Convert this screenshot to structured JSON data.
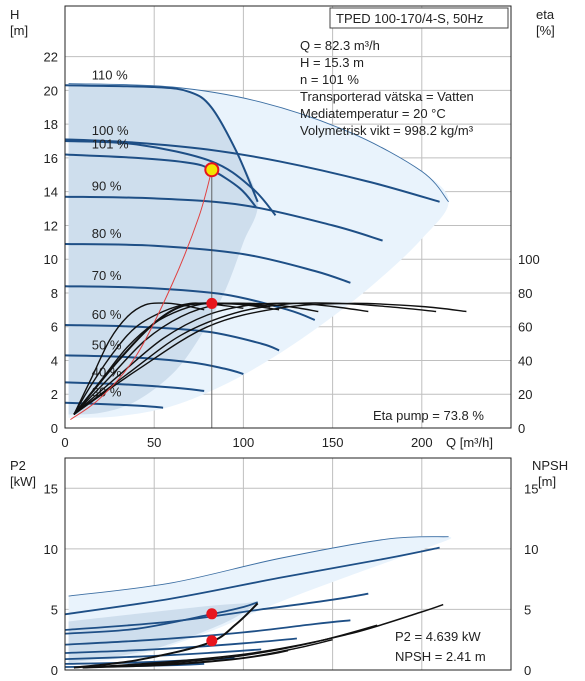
{
  "colors": {
    "curve": "#1e4f86",
    "envelope_fill": "#e9f3fc",
    "envelope_line": "#3d6fa3",
    "shade_fill": "#c9d9ea",
    "eta_curve": "#111111",
    "duty_marker": "#e8141c",
    "duty_marker_ring": "#f2e400",
    "system_curve": "#e04040",
    "grid": "#bfbfbf",
    "axis": "#222222"
  },
  "chart_data": [
    {
      "type": "line",
      "title": "TPED 100-170/4-S, 50Hz",
      "x_label": "Q [m³/h]",
      "y_label_left": [
        "H",
        "[m]"
      ],
      "y_label_right": [
        "eta",
        "[%]"
      ],
      "xlim": [
        0,
        250
      ],
      "ylim": [
        0,
        25
      ],
      "x_ticks": [
        0,
        50,
        100,
        150,
        200
      ],
      "y_ticks_left": [
        0,
        2,
        4,
        6,
        8,
        10,
        12,
        14,
        16,
        18,
        20,
        22
      ],
      "y2lim": [
        0,
        250
      ],
      "y_ticks_right": [
        0,
        20,
        40,
        60,
        80,
        100
      ],
      "info_lines": [
        "Q = 82.3 m³/h",
        "H = 15.3 m",
        "n = 101 %",
        "Transporterad vätska = Vatten",
        "Mediatemperatur = 20 °C",
        "Volymetrisk vikt = 998.2 kg/m³"
      ],
      "eta_readout": "Eta pump = 73.8 %",
      "duty_point": {
        "q": 82.3,
        "h": 15.3,
        "eta": 73.8
      },
      "speed_curves": [
        {
          "label": "110 %",
          "points": [
            [
              0,
              20.3
            ],
            [
              50,
              20.2
            ],
            [
              70,
              19.9
            ],
            [
              82,
              19.0
            ],
            [
              96,
              16.4
            ],
            [
              108,
              13.4
            ]
          ]
        },
        {
          "label": "",
          "points": [
            [
              0,
              17.1
            ],
            [
              40,
              16.9
            ],
            [
              80,
              16.5
            ],
            [
              120,
              15.8
            ],
            [
              170,
              14.6
            ],
            [
              210,
              13.4
            ]
          ]
        },
        {
          "label": "100 %",
          "points": [
            [
              0,
              17.0
            ],
            [
              40,
              16.8
            ],
            [
              82,
              15.8
            ],
            [
              105,
              14.2
            ],
            [
              118,
              12.6
            ]
          ]
        },
        {
          "label": "101 %",
          "points": [
            [
              0,
              16.2
            ],
            [
              40,
              16.0
            ],
            [
              70,
              15.7
            ],
            [
              82,
              15.3
            ],
            [
              98,
              14.2
            ],
            [
              107,
              13.1
            ]
          ]
        },
        {
          "label": "90 %",
          "points": [
            [
              0,
              13.7
            ],
            [
              50,
              13.6
            ],
            [
              100,
              13.2
            ],
            [
              150,
              12.0
            ],
            [
              178,
              11.1
            ]
          ]
        },
        {
          "label": "80 %",
          "points": [
            [
              0,
              10.9
            ],
            [
              50,
              10.8
            ],
            [
              100,
              10.3
            ],
            [
              140,
              9.3
            ],
            [
              160,
              8.6
            ]
          ]
        },
        {
          "label": "70 %",
          "points": [
            [
              0,
              8.4
            ],
            [
              45,
              8.3
            ],
            [
              90,
              7.9
            ],
            [
              125,
              7.0
            ],
            [
              140,
              6.4
            ]
          ]
        },
        {
          "label": "60 %",
          "points": [
            [
              0,
              6.1
            ],
            [
              40,
              6.0
            ],
            [
              80,
              5.7
            ],
            [
              110,
              5.0
            ],
            [
              120,
              4.6
            ]
          ]
        },
        {
          "label": "50 %",
          "points": [
            [
              0,
              4.3
            ],
            [
              35,
              4.2
            ],
            [
              70,
              3.9
            ],
            [
              90,
              3.5
            ],
            [
              100,
              3.2
            ]
          ]
        },
        {
          "label": "40 %",
          "points": [
            [
              0,
              2.7
            ],
            [
              30,
              2.6
            ],
            [
              60,
              2.4
            ],
            [
              78,
              2.2
            ]
          ]
        },
        {
          "label": "30 %",
          "points": [
            [
              0,
              1.5
            ],
            [
              25,
              1.4
            ],
            [
              45,
              1.3
            ],
            [
              55,
              1.2
            ]
          ]
        }
      ],
      "eta_curves": [
        {
          "points": [
            [
              5,
              8
            ],
            [
              15,
              30
            ],
            [
              25,
              52
            ],
            [
              35,
              66
            ],
            [
              45,
              73
            ],
            [
              55,
              74
            ],
            [
              65,
              73
            ],
            [
              78,
              70
            ]
          ]
        },
        {
          "points": [
            [
              5,
              8
            ],
            [
              15,
              26
            ],
            [
              28,
              46
            ],
            [
              40,
              60
            ],
            [
              55,
              69
            ],
            [
              70,
              73.8
            ],
            [
              85,
              73
            ],
            [
              100,
              71
            ]
          ]
        },
        {
          "points": [
            [
              5,
              8
            ],
            [
              20,
              28
            ],
            [
              35,
              48
            ],
            [
              50,
              62
            ],
            [
              65,
              70
            ],
            [
              80,
              73.8
            ],
            [
              100,
              73
            ],
            [
              120,
              70
            ]
          ]
        },
        {
          "points": [
            [
              5,
              8
            ],
            [
              25,
              30
            ],
            [
              45,
              52
            ],
            [
              65,
              66
            ],
            [
              85,
              73
            ],
            [
              105,
              73.8
            ],
            [
              125,
              72
            ],
            [
              142,
              69
            ]
          ]
        },
        {
          "points": [
            [
              5,
              8
            ],
            [
              30,
              31
            ],
            [
              55,
              53
            ],
            [
              80,
              67
            ],
            [
              105,
              73
            ],
            [
              130,
              73.8
            ],
            [
              150,
              72
            ],
            [
              170,
              69
            ]
          ]
        },
        {
          "points": [
            [
              5,
              8
            ],
            [
              35,
              32
            ],
            [
              65,
              55
            ],
            [
              95,
              68
            ],
            [
              125,
              73.5
            ],
            [
              155,
              73.8
            ],
            [
              185,
              71.5
            ],
            [
              208,
              69
            ]
          ]
        },
        {
          "points": [
            [
              5,
              8
            ],
            [
              30,
              40
            ],
            [
              50,
              62
            ],
            [
              65,
              72
            ],
            [
              80,
              74
            ],
            [
              82.3,
              73.8
            ],
            [
              100,
              73.5
            ],
            [
              115,
              72
            ]
          ]
        },
        {
          "points": [
            [
              5,
              8
            ],
            [
              40,
              34
            ],
            [
              80,
              60
            ],
            [
              120,
              71
            ],
            [
              160,
              73.8
            ],
            [
              200,
              72
            ],
            [
              225,
              69
            ]
          ]
        }
      ],
      "system_curve": [
        [
          3,
          0.5
        ],
        [
          20,
          1.8
        ],
        [
          40,
          4.3
        ],
        [
          60,
          8.5
        ],
        [
          75,
          12.5
        ],
        [
          82.3,
          15.3
        ]
      ]
    },
    {
      "type": "line",
      "x_label": "",
      "y_label_left": [
        "P2",
        "[kW]"
      ],
      "y_label_right": [
        "NPSH",
        "[m]"
      ],
      "xlim": [
        0,
        250
      ],
      "ylim": [
        0,
        17.5
      ],
      "y_ticks_left": [
        0,
        5,
        10,
        15
      ],
      "y_ticks_right": [
        0,
        5,
        10,
        15
      ],
      "p2_readout": "P2 = 4.639 kW",
      "npsh_readout": "NPSH = 2.41 m",
      "duty_p2": 4.639,
      "duty_npsh": 2.41,
      "p2_curves": [
        {
          "points": [
            [
              0,
              3.0
            ],
            [
              40,
              3.4
            ],
            [
              82,
              4.6
            ],
            [
              100,
              5.2
            ],
            [
              108,
              5.6
            ]
          ]
        },
        {
          "points": [
            [
              0,
              4.6
            ],
            [
              60,
              5.9
            ],
            [
              120,
              7.6
            ],
            [
              180,
              9.2
            ],
            [
              210,
              10.1
            ]
          ]
        },
        {
          "points": [
            [
              0,
              3.3
            ],
            [
              60,
              4.0
            ],
            [
              110,
              5.0
            ],
            [
              150,
              5.8
            ],
            [
              170,
              6.3
            ]
          ]
        },
        {
          "points": [
            [
              0,
              2.1
            ],
            [
              50,
              2.5
            ],
            [
              100,
              3.1
            ],
            [
              140,
              3.8
            ],
            [
              160,
              4.1
            ]
          ]
        },
        {
          "points": [
            [
              0,
              1.4
            ],
            [
              50,
              1.7
            ],
            [
              100,
              2.2
            ],
            [
              130,
              2.6
            ]
          ]
        },
        {
          "points": [
            [
              0,
              0.9
            ],
            [
              40,
              1.1
            ],
            [
              80,
              1.4
            ],
            [
              110,
              1.7
            ]
          ]
        },
        {
          "points": [
            [
              0,
              0.5
            ],
            [
              35,
              0.6
            ],
            [
              70,
              0.8
            ],
            [
              95,
              1.0
            ]
          ]
        },
        {
          "points": [
            [
              0,
              0.25
            ],
            [
              30,
              0.3
            ],
            [
              60,
              0.4
            ],
            [
              78,
              0.5
            ]
          ]
        }
      ],
      "npsh_curves": [
        {
          "points": [
            [
              5,
              0.2
            ],
            [
              40,
              0.8
            ],
            [
              80,
              2.2
            ],
            [
              96,
              3.8
            ],
            [
              108,
              5.5
            ]
          ]
        },
        {
          "points": [
            [
              10,
              0.2
            ],
            [
              60,
              0.7
            ],
            [
              110,
              1.5
            ],
            [
              160,
              3.0
            ],
            [
              200,
              4.8
            ],
            [
              212,
              5.4
            ]
          ]
        },
        {
          "points": [
            [
              10,
              0.2
            ],
            [
              60,
              0.6
            ],
            [
              100,
              1.2
            ],
            [
              140,
              2.3
            ],
            [
              175,
              3.7
            ]
          ]
        },
        {
          "points": [
            [
              10,
              0.2
            ],
            [
              60,
              0.5
            ],
            [
              100,
              1.0
            ],
            [
              130,
              1.8
            ],
            [
              150,
              2.5
            ]
          ]
        },
        {
          "points": [
            [
              10,
              0.2
            ],
            [
              55,
              0.4
            ],
            [
              90,
              0.8
            ],
            [
              115,
              1.3
            ],
            [
              125,
              1.6
            ]
          ]
        }
      ]
    }
  ]
}
